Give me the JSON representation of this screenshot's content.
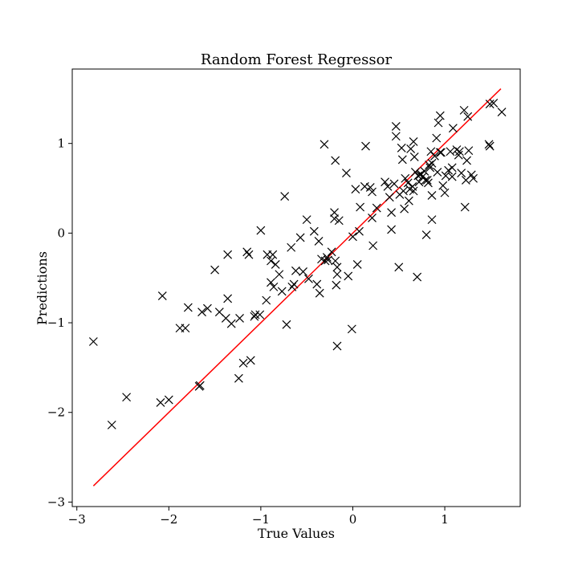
{
  "chart_data": {
    "type": "scatter",
    "title": "Random Forest Regressor",
    "xlabel": "True Values",
    "ylabel": "Predictions",
    "xlim": [
      -3.05,
      1.82
    ],
    "ylim": [
      -3.05,
      1.83
    ],
    "xticks": [
      -3,
      -2,
      -1,
      0,
      1
    ],
    "yticks": [
      -3,
      -2,
      -1,
      0,
      1
    ],
    "xtick_labels": [
      "−3",
      "−2",
      "−1",
      "0",
      "1"
    ],
    "ytick_labels": [
      "−3",
      "−2",
      "−1",
      "0",
      "1"
    ],
    "grid": false,
    "marker": "x",
    "marker_color": "#000000",
    "reference_line": {
      "from": [
        -2.82,
        -2.82
      ],
      "to": [
        1.61,
        1.61
      ],
      "color": "#ff0000"
    },
    "points": [
      [
        -2.82,
        -1.21
      ],
      [
        -2.62,
        -2.14
      ],
      [
        -2.46,
        -1.83
      ],
      [
        -2.09,
        -1.89
      ],
      [
        -2.07,
        -0.7
      ],
      [
        -2.0,
        -1.86
      ],
      [
        -1.88,
        -1.06
      ],
      [
        -1.82,
        -1.06
      ],
      [
        -1.79,
        -0.83
      ],
      [
        -1.67,
        -1.71
      ],
      [
        -1.66,
        -1.7
      ],
      [
        -1.64,
        -0.88
      ],
      [
        -1.58,
        -0.84
      ],
      [
        -1.5,
        -0.41
      ],
      [
        -1.45,
        -0.88
      ],
      [
        -1.38,
        -0.95
      ],
      [
        -1.36,
        -0.73
      ],
      [
        -1.36,
        -0.24
      ],
      [
        -1.32,
        -1.01
      ],
      [
        -1.24,
        -1.62
      ],
      [
        -1.23,
        -0.95
      ],
      [
        -1.19,
        -1.45
      ],
      [
        -1.15,
        -0.21
      ],
      [
        -1.13,
        -0.24
      ],
      [
        -1.11,
        -1.42
      ],
      [
        -1.07,
        -0.93
      ],
      [
        -1.06,
        -0.91
      ],
      [
        -1.01,
        -0.91
      ],
      [
        -1.0,
        0.03
      ],
      [
        -0.94,
        -0.75
      ],
      [
        -0.93,
        -0.24
      ],
      [
        -0.89,
        -0.31
      ],
      [
        -0.89,
        -0.55
      ],
      [
        -0.87,
        -0.24
      ],
      [
        -0.86,
        -0.6
      ],
      [
        -0.84,
        -0.35
      ],
      [
        -0.8,
        -0.46
      ],
      [
        -0.77,
        -0.65
      ],
      [
        -0.74,
        0.41
      ],
      [
        -0.72,
        -1.02
      ],
      [
        -0.67,
        -0.16
      ],
      [
        -0.66,
        -0.6
      ],
      [
        -0.64,
        -0.57
      ],
      [
        -0.62,
        -0.42
      ],
      [
        -0.57,
        -0.05
      ],
      [
        -0.54,
        -0.43
      ],
      [
        -0.5,
        0.15
      ],
      [
        -0.48,
        -0.51
      ],
      [
        -0.42,
        0.02
      ],
      [
        -0.39,
        -0.57
      ],
      [
        -0.37,
        -0.09
      ],
      [
        -0.36,
        -0.67
      ],
      [
        -0.34,
        -0.29
      ],
      [
        -0.31,
        0.99
      ],
      [
        -0.3,
        -0.31
      ],
      [
        -0.28,
        -0.27
      ],
      [
        -0.27,
        -0.3
      ],
      [
        -0.23,
        -0.21
      ],
      [
        -0.2,
        0.23
      ],
      [
        -0.2,
        0.16
      ],
      [
        -0.19,
        0.81
      ],
      [
        -0.19,
        -0.31
      ],
      [
        -0.18,
        -0.58
      ],
      [
        -0.17,
        -0.38
      ],
      [
        -0.17,
        -0.46
      ],
      [
        -0.17,
        -1.26
      ],
      [
        -0.15,
        0.14
      ],
      [
        -0.07,
        0.67
      ],
      [
        -0.05,
        -0.48
      ],
      [
        -0.01,
        -1.07
      ],
      [
        0.0,
        -0.04
      ],
      [
        0.03,
        0.49
      ],
      [
        0.05,
        -0.35
      ],
      [
        0.07,
        0.02
      ],
      [
        0.08,
        0.29
      ],
      [
        0.13,
        0.52
      ],
      [
        0.14,
        0.97
      ],
      [
        0.19,
        0.51
      ],
      [
        0.21,
        0.46
      ],
      [
        0.21,
        0.17
      ],
      [
        0.22,
        -0.14
      ],
      [
        0.26,
        0.28
      ],
      [
        0.35,
        0.57
      ],
      [
        0.38,
        0.52
      ],
      [
        0.4,
        0.4
      ],
      [
        0.42,
        0.23
      ],
      [
        0.42,
        0.04
      ],
      [
        0.45,
        0.55
      ],
      [
        0.47,
        1.19
      ],
      [
        0.47,
        1.08
      ],
      [
        0.5,
        -0.38
      ],
      [
        0.51,
        0.43
      ],
      [
        0.53,
        0.95
      ],
      [
        0.54,
        0.82
      ],
      [
        0.55,
        0.47
      ],
      [
        0.56,
        0.27
      ],
      [
        0.57,
        0.61
      ],
      [
        0.6,
        0.56
      ],
      [
        0.61,
        0.36
      ],
      [
        0.62,
        0.49
      ],
      [
        0.63,
        0.94
      ],
      [
        0.65,
        0.52
      ],
      [
        0.66,
        1.02
      ],
      [
        0.66,
        0.47
      ],
      [
        0.67,
        0.85
      ],
      [
        0.68,
        0.68
      ],
      [
        0.7,
        -0.49
      ],
      [
        0.71,
        0.64
      ],
      [
        0.72,
        0.57
      ],
      [
        0.73,
        0.65
      ],
      [
        0.74,
        0.66
      ],
      [
        0.76,
        0.63
      ],
      [
        0.78,
        0.69
      ],
      [
        0.79,
        0.59
      ],
      [
        0.8,
        -0.02
      ],
      [
        0.81,
        0.59
      ],
      [
        0.82,
        0.56
      ],
      [
        0.83,
        0.76
      ],
      [
        0.84,
        0.73
      ],
      [
        0.85,
        0.91
      ],
      [
        0.86,
        0.78
      ],
      [
        0.86,
        0.42
      ],
      [
        0.86,
        0.15
      ],
      [
        0.89,
        0.86
      ],
      [
        0.91,
        1.06
      ],
      [
        0.92,
        0.68
      ],
      [
        0.93,
        1.23
      ],
      [
        0.95,
        1.31
      ],
      [
        0.95,
        0.9
      ],
      [
        0.96,
        0.9
      ],
      [
        0.98,
        0.53
      ],
      [
        1.0,
        0.45
      ],
      [
        1.01,
        0.64
      ],
      [
        1.04,
        0.7
      ],
      [
        1.06,
        0.91
      ],
      [
        1.08,
        0.63
      ],
      [
        1.08,
        0.73
      ],
      [
        1.09,
        1.17
      ],
      [
        1.13,
        0.93
      ],
      [
        1.15,
        0.87
      ],
      [
        1.16,
        0.91
      ],
      [
        1.18,
        0.67
      ],
      [
        1.21,
        1.37
      ],
      [
        1.22,
        0.29
      ],
      [
        1.23,
        0.59
      ],
      [
        1.24,
        0.81
      ],
      [
        1.25,
        1.3
      ],
      [
        1.26,
        0.92
      ],
      [
        1.29,
        0.65
      ],
      [
        1.31,
        0.61
      ],
      [
        1.48,
        0.99
      ],
      [
        1.49,
        0.97
      ],
      [
        1.49,
        1.44
      ],
      [
        1.53,
        1.45
      ],
      [
        1.62,
        1.35
      ]
    ]
  }
}
